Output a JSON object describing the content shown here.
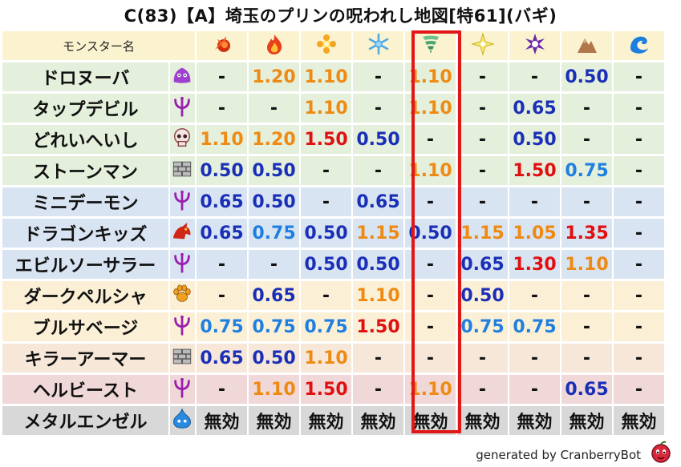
{
  "title": "C(83)【A】埼玉のプリンの呪われし地図[特61](バギ)",
  "header": {
    "name_label": "モンスター名",
    "elements": [
      "fire-ball-icon",
      "flame-icon",
      "explosion-icon",
      "snowflake-icon",
      "tornado-icon",
      "lightning-icon",
      "darkness-icon",
      "earth-icon",
      "wave-icon"
    ]
  },
  "highlight_column": 4,
  "colors": {
    "header_bg": "#fbf3cf",
    "orange": "#ee8a12",
    "red": "#e01010",
    "blue": "#1a2fb7",
    "lightblue": "#1f7fe0",
    "dash": "#111111",
    "highlight": "#e01818"
  },
  "rows": [
    {
      "name": "ドロヌーバ",
      "icon": "slime-purple",
      "bg": "#e4efdc",
      "cells": [
        [
          "-",
          "d"
        ],
        [
          "1.20",
          "o"
        ],
        [
          "1.10",
          "o"
        ],
        [
          "-",
          "d"
        ],
        [
          "1.10",
          "o"
        ],
        [
          "-",
          "d"
        ],
        [
          "-",
          "d"
        ],
        [
          "0.50",
          "b"
        ],
        [
          "-",
          "d"
        ]
      ]
    },
    {
      "name": "タップデビル",
      "icon": "demon",
      "bg": "#e4efdc",
      "cells": [
        [
          "-",
          "d"
        ],
        [
          "-",
          "d"
        ],
        [
          "1.10",
          "o"
        ],
        [
          "-",
          "d"
        ],
        [
          "1.10",
          "o"
        ],
        [
          "-",
          "d"
        ],
        [
          "0.65",
          "b"
        ],
        [
          "-",
          "d"
        ],
        [
          "-",
          "d"
        ]
      ]
    },
    {
      "name": "どれいへいし",
      "icon": "skull",
      "bg": "#e4efdc",
      "cells": [
        [
          "1.10",
          "o"
        ],
        [
          "1.20",
          "o"
        ],
        [
          "1.50",
          "r"
        ],
        [
          "0.50",
          "b"
        ],
        [
          "-",
          "d"
        ],
        [
          "-",
          "d"
        ],
        [
          "0.50",
          "b"
        ],
        [
          "-",
          "d"
        ],
        [
          "-",
          "d"
        ]
      ]
    },
    {
      "name": "ストーンマン",
      "icon": "material",
      "bg": "#e4efdc",
      "cells": [
        [
          "0.50",
          "b"
        ],
        [
          "0.50",
          "b"
        ],
        [
          "-",
          "d"
        ],
        [
          "-",
          "d"
        ],
        [
          "1.10",
          "o"
        ],
        [
          "-",
          "d"
        ],
        [
          "1.50",
          "r"
        ],
        [
          "0.75",
          "l"
        ],
        [
          "-",
          "d"
        ]
      ]
    },
    {
      "name": "ミニデーモン",
      "icon": "demon",
      "bg": "#d8e4f2",
      "cells": [
        [
          "0.65",
          "b"
        ],
        [
          "0.50",
          "b"
        ],
        [
          "-",
          "d"
        ],
        [
          "0.65",
          "b"
        ],
        [
          "-",
          "d"
        ],
        [
          "-",
          "d"
        ],
        [
          "-",
          "d"
        ],
        [
          "-",
          "d"
        ],
        [
          "-",
          "d"
        ]
      ]
    },
    {
      "name": "ドラゴンキッズ",
      "icon": "dragon",
      "bg": "#d8e4f2",
      "cells": [
        [
          "0.65",
          "b"
        ],
        [
          "0.75",
          "l"
        ],
        [
          "0.50",
          "b"
        ],
        [
          "1.15",
          "o"
        ],
        [
          "0.50",
          "b"
        ],
        [
          "1.15",
          "o"
        ],
        [
          "1.05",
          "o"
        ],
        [
          "1.35",
          "r"
        ],
        [
          "-",
          "d"
        ]
      ]
    },
    {
      "name": "エビルソーサラー",
      "icon": "demon",
      "bg": "#d8e4f2",
      "cells": [
        [
          "-",
          "d"
        ],
        [
          "-",
          "d"
        ],
        [
          "0.50",
          "b"
        ],
        [
          "0.50",
          "b"
        ],
        [
          "-",
          "d"
        ],
        [
          "0.65",
          "b"
        ],
        [
          "1.30",
          "r"
        ],
        [
          "1.10",
          "o"
        ],
        [
          "-",
          "d"
        ]
      ]
    },
    {
      "name": "ダークペルシャ",
      "icon": "paw",
      "bg": "#fbf0d6",
      "cells": [
        [
          "-",
          "d"
        ],
        [
          "0.65",
          "b"
        ],
        [
          "-",
          "d"
        ],
        [
          "1.10",
          "o"
        ],
        [
          "-",
          "d"
        ],
        [
          "0.50",
          "b"
        ],
        [
          "-",
          "d"
        ],
        [
          "-",
          "d"
        ],
        [
          "-",
          "d"
        ]
      ]
    },
    {
      "name": "ブルサベージ",
      "icon": "demon",
      "bg": "#fbf0d6",
      "cells": [
        [
          "0.75",
          "l"
        ],
        [
          "0.75",
          "l"
        ],
        [
          "0.75",
          "l"
        ],
        [
          "1.50",
          "r"
        ],
        [
          "-",
          "d"
        ],
        [
          "0.75",
          "l"
        ],
        [
          "0.75",
          "l"
        ],
        [
          "-",
          "d"
        ],
        [
          "-",
          "d"
        ]
      ]
    },
    {
      "name": "キラーアーマー",
      "icon": "material",
      "bg": "#f6e7d8",
      "cells": [
        [
          "0.65",
          "b"
        ],
        [
          "0.50",
          "b"
        ],
        [
          "1.10",
          "o"
        ],
        [
          "-",
          "d"
        ],
        [
          "-",
          "d"
        ],
        [
          "-",
          "d"
        ],
        [
          "-",
          "d"
        ],
        [
          "-",
          "d"
        ],
        [
          "-",
          "d"
        ]
      ]
    },
    {
      "name": "ヘルビースト",
      "icon": "demon",
      "bg": "#f0d8d8",
      "cells": [
        [
          "-",
          "d"
        ],
        [
          "1.10",
          "o"
        ],
        [
          "1.50",
          "r"
        ],
        [
          "-",
          "d"
        ],
        [
          "1.10",
          "o"
        ],
        [
          "-",
          "d"
        ],
        [
          "-",
          "d"
        ],
        [
          "0.65",
          "b"
        ],
        [
          "-",
          "d"
        ]
      ]
    },
    {
      "name": "メタルエンゼル",
      "icon": "slime-blue",
      "bg": "#d8d8d8",
      "cells": [
        [
          "無効",
          "d"
        ],
        [
          "無効",
          "d"
        ],
        [
          "無効",
          "d"
        ],
        [
          "無効",
          "d"
        ],
        [
          "無効",
          "d"
        ],
        [
          "無効",
          "d"
        ],
        [
          "無効",
          "d"
        ],
        [
          "無効",
          "d"
        ],
        [
          "無効",
          "d"
        ]
      ]
    }
  ],
  "footer": {
    "text": "generated by CranberryBot",
    "icon": "cranberry-icon"
  }
}
